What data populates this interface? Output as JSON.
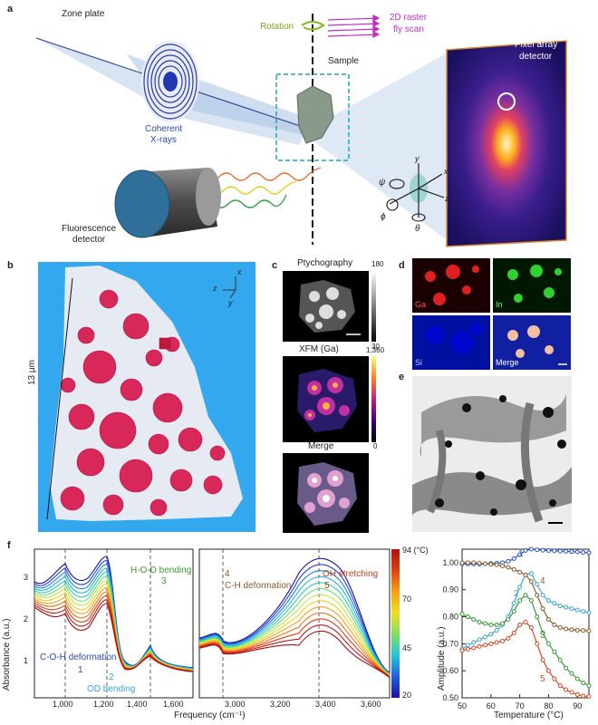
{
  "panel_a": {
    "label": "a",
    "zone_plate": "Zone plate",
    "coherent": "Coherent",
    "xrays": "X-rays",
    "rotation": "Rotation",
    "raster_line1": "2D raster",
    "raster_line2": "fly scan",
    "sample": "Sample",
    "detector_line1": "Pixel array",
    "detector_line2": "detector",
    "fluor_line1": "Fluorescence",
    "fluor_line2": "detector",
    "axes": {
      "x": "x",
      "y": "y",
      "z": "z",
      "psi": "ψ",
      "phi": "ϕ",
      "theta": "θ"
    }
  },
  "panel_b": {
    "label": "b",
    "scale": "13 μm",
    "axes": {
      "x": "x",
      "y": "y",
      "z": "z"
    }
  },
  "panel_c": {
    "label": "c",
    "ptycho": "Ptychography",
    "ptycho_max": "180",
    "ptycho_min": "30",
    "xfm": "XFM (Ga)",
    "xfm_max": "1,360",
    "xfm_min": "0",
    "merge": "Merge"
  },
  "panel_d": {
    "label": "d",
    "ga": "Ga",
    "in": "In",
    "si": "Si",
    "merge": "Merge"
  },
  "panel_e": {
    "label": "e"
  },
  "panel_f": {
    "label": "f",
    "ylabel_left": "Absorbance (a.u.)",
    "xlabel_left": "Frequency (cm⁻¹)",
    "ylabel_right": "Amplitude (a.u.)",
    "xlabel_right": "Temperature (°C)",
    "colorbar_unit": "94 (°C)",
    "colorbar_ticks": [
      "70",
      "45",
      "20"
    ],
    "ann": {
      "hod": "H-O-D bending",
      "hod_n": "3",
      "coh": "C-O-H deformation",
      "coh_n": "1",
      "od": "OD bending",
      "od_n": "2",
      "ch_n": "4",
      "ch": "C-H deformation",
      "oh": "OH stretching",
      "oh_n": "5"
    },
    "left_yticks": [
      "3",
      "2",
      "1"
    ],
    "left_xticks": [
      "1,000",
      "1,200",
      "1,400",
      "1,600"
    ],
    "mid_xticks": [
      "3,000",
      "3,200",
      "3,400",
      "3,600"
    ],
    "right_yticks": [
      "1.00",
      "0.90",
      "0.80",
      "0.70",
      "0.60",
      "0.50"
    ],
    "right_xticks": [
      "50",
      "60",
      "70",
      "80",
      "90"
    ],
    "curve_labels": [
      "1",
      "2",
      "3",
      "4",
      "5"
    ]
  },
  "chart_data": {
    "type": "line",
    "xlabel": "Temperature (°C)",
    "ylabel": "Amplitude (a.u.)",
    "xlim": [
      50,
      94
    ],
    "ylim": [
      0.5,
      1.05
    ],
    "x": [
      50,
      52,
      54,
      56,
      58,
      60,
      62,
      64,
      66,
      68,
      70,
      72,
      74,
      76,
      78,
      80,
      82,
      84,
      86,
      88,
      90,
      92,
      94
    ],
    "series": [
      {
        "name": "1",
        "color": "#2b55c4",
        "values": [
          0.995,
          0.995,
          0.995,
          0.995,
          0.996,
          0.997,
          0.998,
          1.0,
          1.005,
          1.015,
          1.03,
          1.045,
          1.05,
          1.048,
          1.046,
          1.045,
          1.044,
          1.043,
          1.042,
          1.041,
          1.04,
          1.038,
          1.037
        ]
      },
      {
        "name": "2",
        "color": "#3aa7d8",
        "values": [
          0.68,
          0.695,
          0.705,
          0.715,
          0.725,
          0.735,
          0.75,
          0.77,
          0.8,
          0.85,
          0.91,
          0.955,
          0.96,
          0.92,
          0.88,
          0.86,
          0.85,
          0.84,
          0.835,
          0.83,
          0.825,
          0.82,
          0.815
        ]
      },
      {
        "name": "3",
        "color": "#3d9a3a",
        "values": [
          0.81,
          0.8,
          0.79,
          0.78,
          0.775,
          0.77,
          0.77,
          0.775,
          0.79,
          0.82,
          0.86,
          0.88,
          0.86,
          0.8,
          0.74,
          0.7,
          0.67,
          0.64,
          0.61,
          0.59,
          0.57,
          0.555,
          0.545
        ]
      },
      {
        "name": "4",
        "color": "#8a5a2b",
        "values": [
          1.0,
          1.0,
          1.0,
          0.998,
          0.996,
          0.994,
          0.992,
          0.988,
          0.983,
          0.975,
          0.965,
          0.955,
          0.93,
          0.88,
          0.83,
          0.79,
          0.77,
          0.76,
          0.755,
          0.752,
          0.75,
          0.749,
          0.748
        ]
      },
      {
        "name": "5",
        "color": "#d24a2a",
        "values": [
          0.675,
          0.68,
          0.685,
          0.69,
          0.695,
          0.7,
          0.705,
          0.71,
          0.72,
          0.74,
          0.77,
          0.78,
          0.76,
          0.7,
          0.64,
          0.6,
          0.57,
          0.545,
          0.53,
          0.52,
          0.512,
          0.507,
          0.505
        ]
      }
    ]
  }
}
